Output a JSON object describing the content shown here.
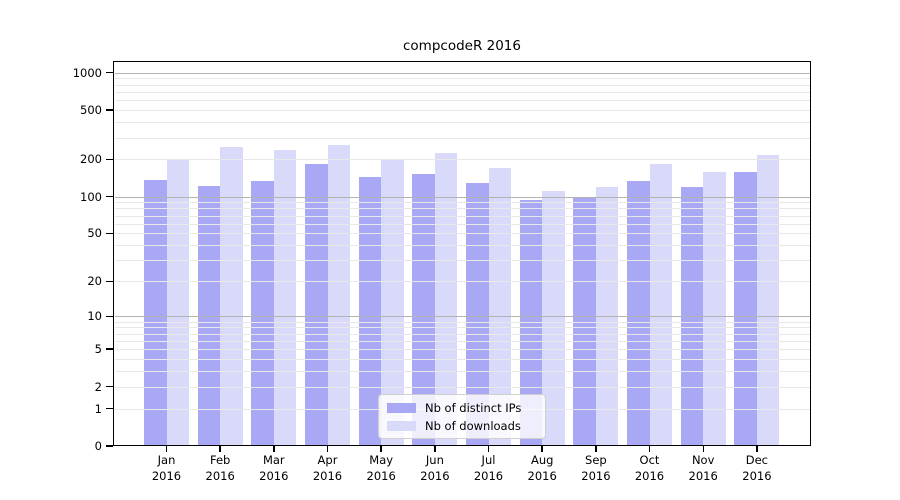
{
  "chart_data": {
    "type": "bar",
    "title": "compcodeR 2016",
    "year_label": "2016",
    "categories": [
      "Jan",
      "Feb",
      "Mar",
      "Apr",
      "May",
      "Jun",
      "Jul",
      "Aug",
      "Sep",
      "Oct",
      "Nov",
      "Dec"
    ],
    "series": [
      {
        "name": "Nb of distinct IPs",
        "color": "#a8a8f4",
        "values": [
          137,
          122,
          134,
          182,
          143,
          152,
          129,
          93,
          97,
          133,
          119,
          157
        ]
      },
      {
        "name": "Nb of downloads",
        "color": "#d9d9f9",
        "values": [
          200,
          252,
          236,
          263,
          201,
          223,
          170,
          110,
          120,
          183,
          158,
          215
        ]
      }
    ],
    "yscale": "log1p",
    "y_ticks": [
      0,
      1,
      2,
      5,
      10,
      20,
      50,
      100,
      200,
      500,
      1000
    ],
    "ylim": [
      0,
      1250
    ],
    "grid": "horizontal",
    "grid_major_values": [
      10,
      100,
      1000
    ],
    "grid_minor_values": [
      1,
      2,
      3,
      4,
      5,
      6,
      7,
      8,
      9,
      20,
      30,
      40,
      50,
      60,
      70,
      80,
      90,
      200,
      300,
      400,
      500,
      600,
      700,
      800,
      900
    ],
    "legend_position": "lower-center",
    "colors": {
      "major_grid": "#b3b3b3",
      "minor_grid": "#e8e8e8",
      "spine": "#000000",
      "background": "#ffffff"
    }
  }
}
